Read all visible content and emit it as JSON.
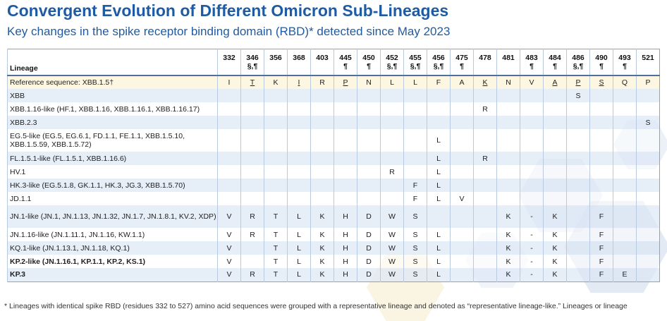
{
  "title": "Convergent Evolution of Different Omicron Sub-Lineages",
  "subtitle": "Key changes in the spike receptor binding domain (RBD)* detected since May 2023",
  "table": {
    "lineage_header": "Lineage",
    "positions": [
      {
        "pos": "332",
        "mark": ""
      },
      {
        "pos": "346",
        "mark": "§,¶"
      },
      {
        "pos": "356",
        "mark": ""
      },
      {
        "pos": "368",
        "mark": ""
      },
      {
        "pos": "403",
        "mark": ""
      },
      {
        "pos": "445",
        "mark": "¶"
      },
      {
        "pos": "450",
        "mark": "¶"
      },
      {
        "pos": "452",
        "mark": "§,¶"
      },
      {
        "pos": "455",
        "mark": "§,¶"
      },
      {
        "pos": "456",
        "mark": "§,¶"
      },
      {
        "pos": "475",
        "mark": "¶"
      },
      {
        "pos": "478",
        "mark": ""
      },
      {
        "pos": "481",
        "mark": ""
      },
      {
        "pos": "483",
        "mark": "¶"
      },
      {
        "pos": "484",
        "mark": "¶"
      },
      {
        "pos": "486",
        "mark": "§,¶"
      },
      {
        "pos": "490",
        "mark": "¶"
      },
      {
        "pos": "493",
        "mark": "¶"
      },
      {
        "pos": "521",
        "mark": ""
      }
    ],
    "rows": [
      {
        "lineage": "Reference sequence: XBB.1.5†",
        "type": "ref",
        "bold": false,
        "tall": false,
        "cells": [
          "I",
          "T",
          "K",
          "I",
          "R",
          "P",
          "N",
          "L",
          "L",
          "F",
          "A",
          "K",
          "N",
          "V",
          "A",
          "P",
          "S",
          "Q",
          "P"
        ],
        "underline": [
          1,
          3,
          5,
          11,
          14,
          15,
          16
        ]
      },
      {
        "lineage": "XBB",
        "type": "odd",
        "bold": false,
        "tall": false,
        "cells": [
          "",
          "",
          "",
          "",
          "",
          "",
          "",
          "",
          "",
          "",
          "",
          "",
          "",
          "",
          "",
          "S",
          "",
          "",
          ""
        ]
      },
      {
        "lineage": "XBB.1.16-like (HF.1, XBB.1.16, XBB.1.16.1, XBB.1.16.17)",
        "type": "even",
        "bold": false,
        "tall": false,
        "cells": [
          "",
          "",
          "",
          "",
          "",
          "",
          "",
          "",
          "",
          "",
          "",
          "R",
          "",
          "",
          "",
          "",
          "",
          "",
          ""
        ]
      },
      {
        "lineage": "XBB.2.3",
        "type": "odd",
        "bold": false,
        "tall": false,
        "cells": [
          "",
          "",
          "",
          "",
          "",
          "",
          "",
          "",
          "",
          "",
          "",
          "",
          "",
          "",
          "",
          "",
          "",
          "",
          "S"
        ]
      },
      {
        "lineage": "EG.5-like (EG.5, EG.6.1, FD.1.1, FE.1.1, XBB.1.5.10, XBB.1.5.59, XBB.1.5.72)",
        "type": "even",
        "bold": false,
        "tall": true,
        "cells": [
          "",
          "",
          "",
          "",
          "",
          "",
          "",
          "",
          "",
          "L",
          "",
          "",
          "",
          "",
          "",
          "",
          "",
          "",
          ""
        ]
      },
      {
        "lineage": "FL.1.5.1-like (FL.1.5.1, XBB.1.16.6)",
        "type": "odd",
        "bold": false,
        "tall": false,
        "cells": [
          "",
          "",
          "",
          "",
          "",
          "",
          "",
          "",
          "",
          "L",
          "",
          "R",
          "",
          "",
          "",
          "",
          "",
          "",
          ""
        ]
      },
      {
        "lineage": "HV.1",
        "type": "even",
        "bold": false,
        "tall": false,
        "cells": [
          "",
          "",
          "",
          "",
          "",
          "",
          "",
          "R",
          "",
          "L",
          "",
          "",
          "",
          "",
          "",
          "",
          "",
          "",
          ""
        ]
      },
      {
        "lineage": "HK.3-like (EG.5.1.8, GK.1.1, HK.3, JG.3, XBB.1.5.70)",
        "type": "odd",
        "bold": false,
        "tall": false,
        "cells": [
          "",
          "",
          "",
          "",
          "",
          "",
          "",
          "",
          "F",
          "L",
          "",
          "",
          "",
          "",
          "",
          "",
          "",
          "",
          ""
        ]
      },
      {
        "lineage": "JD.1.1",
        "type": "even",
        "bold": false,
        "tall": false,
        "cells": [
          "",
          "",
          "",
          "",
          "",
          "",
          "",
          "",
          "F",
          "L",
          "V",
          "",
          "",
          "",
          "",
          "",
          "",
          "",
          ""
        ]
      },
      {
        "lineage": "JN.1-like (JN.1, JN.1.13, JN.1.32, JN.1.7, JN.1.8.1, KV.2, XDP)",
        "type": "odd",
        "bold": false,
        "tall": true,
        "cells": [
          "V",
          "R",
          "T",
          "L",
          "K",
          "H",
          "D",
          "W",
          "S",
          "",
          "",
          "",
          "K",
          "-",
          "K",
          "",
          "F",
          "",
          ""
        ]
      },
      {
        "lineage": "JN.1.16-like (JN.1.11.1, JN.1.16, KW.1.1)",
        "type": "even",
        "bold": false,
        "tall": false,
        "cells": [
          "V",
          "R",
          "T",
          "L",
          "K",
          "H",
          "D",
          "W",
          "S",
          "L",
          "",
          "",
          "K",
          "-",
          "K",
          "",
          "F",
          "",
          ""
        ]
      },
      {
        "lineage": "KQ.1-like (JN.1.13.1, JN.1.18, KQ.1)",
        "type": "odd",
        "bold": false,
        "tall": false,
        "cells": [
          "V",
          "",
          "T",
          "L",
          "K",
          "H",
          "D",
          "W",
          "S",
          "L",
          "",
          "",
          "K",
          "-",
          "K",
          "",
          "F",
          "",
          ""
        ]
      },
      {
        "lineage": "KP.2-like (JN.1.16.1, KP.1.1, KP.2, KS.1)",
        "type": "even",
        "bold": true,
        "tall": false,
        "cells": [
          "V",
          "",
          "T",
          "L",
          "K",
          "H",
          "D",
          "W",
          "S",
          "L",
          "",
          "",
          "K",
          "-",
          "K",
          "",
          "F",
          "",
          ""
        ]
      },
      {
        "lineage": "KP.3",
        "type": "odd",
        "bold": true,
        "tall": false,
        "cells": [
          "V",
          "R",
          "T",
          "L",
          "K",
          "H",
          "D",
          "W",
          "S",
          "L",
          "",
          "",
          "K",
          "-",
          "K",
          "",
          "F",
          "E",
          ""
        ]
      }
    ]
  },
  "footnote": "* Lineages with identical spike RBD (residues 332 to 527) amino acid sequences were grouped with a representative lineage and denoted as “representative lineage-like.” Lineages or lineage",
  "colors": {
    "title": "#1f5ba3",
    "header_rule": "#4f6f9f",
    "row_tint": "#dde8f5",
    "ref_tint": "#fdf6df"
  }
}
